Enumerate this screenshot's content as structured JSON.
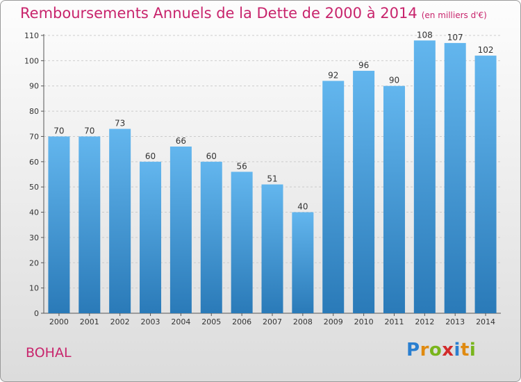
{
  "title": "Remboursements Annuels de la Dette de 2000 à 2014",
  "unit": "(en milliers d'€)",
  "commune": "BOHAL",
  "logo": {
    "letters": [
      {
        "ch": "P",
        "color": "#2a7fd0"
      },
      {
        "ch": "r",
        "color": "#e08a10"
      },
      {
        "ch": "o",
        "color": "#79b51c"
      },
      {
        "ch": "x",
        "color": "#d22b2b"
      },
      {
        "ch": "i",
        "color": "#2a7fd0"
      },
      {
        "ch": "t",
        "color": "#e08a10"
      },
      {
        "ch": "i",
        "color": "#79b51c"
      }
    ]
  },
  "colors": {
    "bar_top": "#63b6ee",
    "bar_bottom": "#2a7ab8",
    "grid": "#cccccc",
    "axis_text": "#333333",
    "title": "#c8246c"
  },
  "chart_data": {
    "type": "bar",
    "categories": [
      "2000",
      "2001",
      "2002",
      "2003",
      "2004",
      "2005",
      "2006",
      "2007",
      "2008",
      "2009",
      "2010",
      "2011",
      "2012",
      "2013",
      "2014"
    ],
    "values": [
      70,
      70,
      73,
      60,
      66,
      60,
      56,
      51,
      40,
      92,
      96,
      90,
      108,
      107,
      102
    ],
    "title": "Remboursements Annuels de la Dette de 2000 à 2014",
    "ylim": [
      0,
      110
    ],
    "yticks": [
      0,
      10,
      20,
      30,
      40,
      50,
      60,
      70,
      80,
      90,
      100,
      110
    ],
    "grid": true,
    "grid_style": "dashed horizontal"
  }
}
